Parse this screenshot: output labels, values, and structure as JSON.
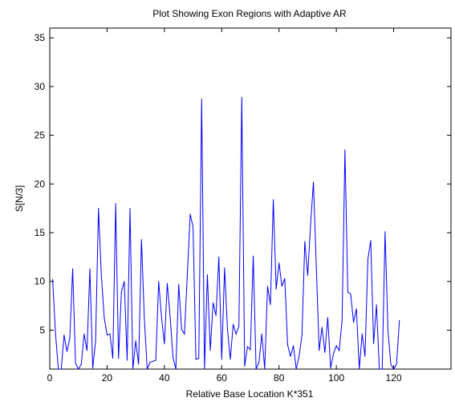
{
  "chart_data": {
    "type": "line",
    "title": "Plot Showing Exon Regions with Adaptive AR",
    "xlabel": "Relative Base Location K*351",
    "ylabel": "S[N/3]",
    "xlim": [
      0,
      140
    ],
    "ylim": [
      1,
      36
    ],
    "xticks": [
      0,
      20,
      40,
      60,
      80,
      100,
      120
    ],
    "yticks": [
      5,
      10,
      15,
      20,
      25,
      30,
      35
    ],
    "grid": false,
    "line_color": "#0000ff",
    "series": [
      {
        "x": [
          1,
          2,
          3,
          4,
          5,
          6,
          7,
          8,
          9,
          10,
          11,
          12,
          13,
          14,
          15,
          16,
          17,
          18,
          19,
          20,
          21,
          22,
          23,
          24,
          25,
          26,
          27,
          28,
          29,
          30,
          31,
          32,
          33,
          34,
          35,
          36,
          37,
          38,
          39,
          40,
          41,
          42,
          43,
          44,
          45,
          46,
          47,
          48,
          49,
          50,
          51,
          52,
          53,
          54,
          55,
          56,
          57,
          58,
          59,
          60,
          61,
          62,
          63,
          64,
          65,
          66,
          67,
          68,
          69,
          70,
          71,
          72,
          73,
          74,
          75,
          76,
          77,
          78,
          79,
          80,
          81,
          82,
          83,
          84,
          85,
          86,
          87,
          88,
          89,
          90,
          91,
          92,
          93,
          94,
          95,
          96,
          97,
          98,
          99,
          100,
          101,
          102,
          103,
          104,
          105,
          106,
          107,
          108,
          109,
          110,
          111,
          112,
          113,
          114,
          115,
          116,
          117,
          118,
          119,
          120,
          121,
          122
        ],
        "y": [
          10.2,
          4.7,
          1.0,
          0.8,
          4.5,
          2.8,
          4.2,
          11.3,
          1.6,
          0.8,
          1.5,
          4.6,
          2.9,
          11.3,
          1.1,
          3.9,
          17.5,
          10.6,
          6.3,
          4.5,
          4.6,
          2.1,
          18.0,
          2.1,
          8.9,
          10.0,
          1.9,
          17.5,
          1.0,
          3.9,
          1.5,
          14.3,
          6.2,
          0.8,
          1.7,
          1.8,
          1.9,
          10.0,
          6.3,
          3.6,
          9.8,
          6.4,
          2.2,
          0.8,
          9.7,
          5.1,
          4.6,
          10.7,
          16.9,
          15.6,
          2.0,
          2.1,
          28.7,
          0.5,
          10.7,
          2.9,
          7.8,
          6.5,
          12.5,
          2.0,
          11.4,
          5.1,
          2.0,
          5.6,
          4.6,
          5.4,
          28.9,
          1.3,
          3.3,
          3.0,
          12.6,
          0.5,
          1.7,
          4.6,
          0.7,
          9.5,
          7.6,
          18.4,
          9.2,
          11.9,
          9.5,
          10.3,
          3.5,
          2.3,
          3.4,
          0.5,
          2.3,
          4.5,
          14.1,
          10.6,
          15.8,
          20.2,
          11.6,
          2.9,
          5.3,
          2.7,
          6.3,
          1.1,
          2.6,
          3.4,
          2.9,
          6.0,
          23.5,
          8.9,
          8.7,
          5.8,
          7.2,
          0.2,
          4.6,
          2.3,
          12.3,
          14.2,
          3.6,
          7.6,
          0.5,
          0.5,
          15.1,
          5.0,
          1.5,
          0.5,
          1.5,
          6.0
        ]
      }
    ]
  }
}
